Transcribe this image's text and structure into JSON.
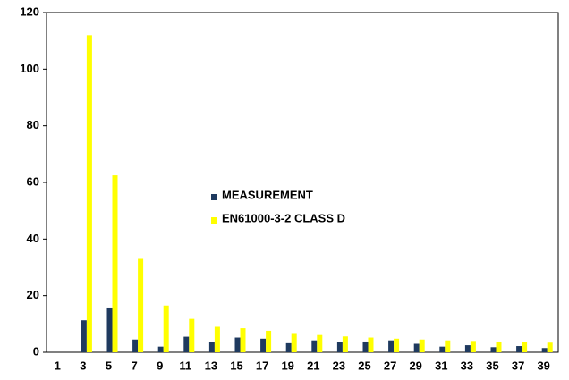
{
  "chart_data": {
    "type": "bar",
    "categories": [
      "1",
      "3",
      "5",
      "7",
      "9",
      "11",
      "13",
      "15",
      "17",
      "19",
      "21",
      "23",
      "25",
      "27",
      "29",
      "31",
      "33",
      "35",
      "37",
      "39"
    ],
    "series": [
      {
        "name": "MEASUREMENT",
        "color": "#1f3a5f",
        "values": [
          null,
          11.3,
          15.8,
          4.5,
          2,
          5.5,
          3.5,
          5.2,
          4.8,
          3.2,
          4.2,
          3.5,
          3.8,
          4.2,
          3,
          2,
          2.5,
          1.8,
          2.2,
          1.5
        ]
      },
      {
        "name": "EN61000-3-2 CLASS D",
        "color": "#ffff00",
        "values": [
          null,
          112,
          62.5,
          33,
          16.5,
          11.8,
          9,
          8.5,
          7.6,
          6.8,
          6.1,
          5.6,
          5.2,
          4.8,
          4.5,
          4.2,
          4,
          3.8,
          3.6,
          3.4
        ]
      }
    ],
    "ylim": [
      0,
      120
    ],
    "yticks": [
      0,
      20,
      40,
      60,
      80,
      100,
      120
    ],
    "grid": false,
    "legend": "center"
  }
}
